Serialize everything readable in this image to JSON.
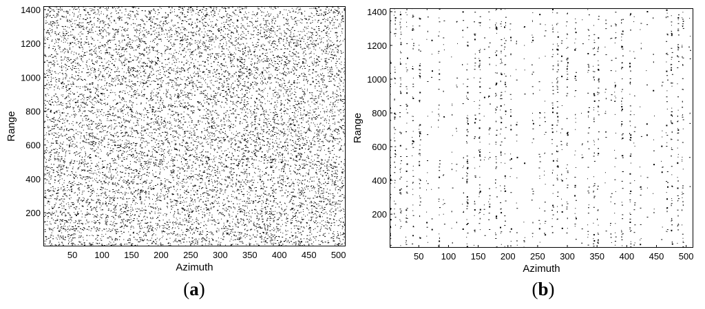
{
  "chart_data": [
    {
      "type": "heatmap",
      "panel_label": "a",
      "description_values": {
        "pattern": "fringes"
      },
      "xlabel": "Azimuth",
      "ylabel": "Range",
      "xlim": [
        1,
        512
      ],
      "ylim": [
        1,
        1420
      ],
      "xticks": [
        50,
        100,
        150,
        200,
        250,
        300,
        350,
        400,
        450,
        500
      ],
      "yticks": [
        200,
        400,
        600,
        800,
        1000,
        1200,
        1400
      ],
      "colors": {
        "ink": "#000000",
        "background": "#ffffff"
      }
    },
    {
      "type": "heatmap",
      "panel_label": "b",
      "description_values": {
        "pattern": "sparse"
      },
      "xlabel": "Azimuth",
      "ylabel": "Range",
      "xlim": [
        1,
        512
      ],
      "ylim": [
        1,
        1420
      ],
      "xticks": [
        50,
        100,
        150,
        200,
        250,
        300,
        350,
        400,
        450,
        500
      ],
      "yticks": [
        200,
        400,
        600,
        800,
        1000,
        1200,
        1400
      ],
      "colors": {
        "ink": "#000000",
        "background": "#ffffff"
      }
    }
  ]
}
